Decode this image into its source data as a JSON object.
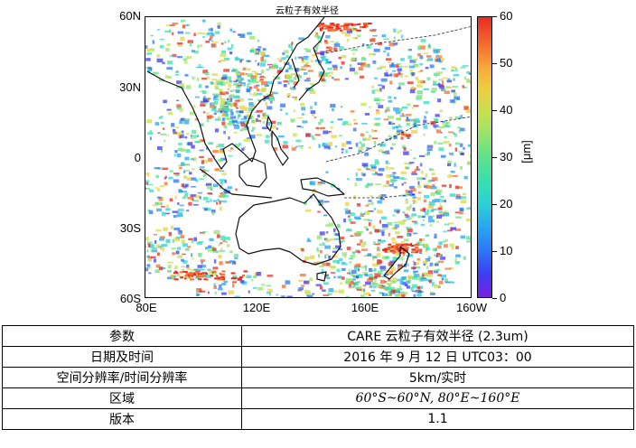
{
  "figure": {
    "title": "云粒子有效半径",
    "lat_labels": [
      "60N",
      "30N",
      "0",
      "30S",
      "60S"
    ],
    "lon_labels": [
      "80E",
      "120E",
      "160E",
      "160W"
    ],
    "colorbar": {
      "ticks": [
        "0",
        "10",
        "20",
        "30",
        "40",
        "50",
        "60"
      ],
      "unit": "[μm]",
      "range": [
        0,
        60
      ],
      "colors": {
        "low": "#7b1fe0",
        "mid": "#36e0b0",
        "high": "#e82c22"
      }
    }
  },
  "table": {
    "rows": [
      {
        "key": "参数",
        "value": "CARE  云粒子有效半径  (2.3um)"
      },
      {
        "key": "日期及时间",
        "value": "2016 年 9 月 12 日 UTC03：00"
      },
      {
        "key": "空间分辨率/时间分辨率",
        "value": "5km/实时"
      },
      {
        "key": "区域",
        "value": "60°S~60°N, 80°E~160°E"
      },
      {
        "key": "版本",
        "value": "1.1"
      }
    ]
  }
}
